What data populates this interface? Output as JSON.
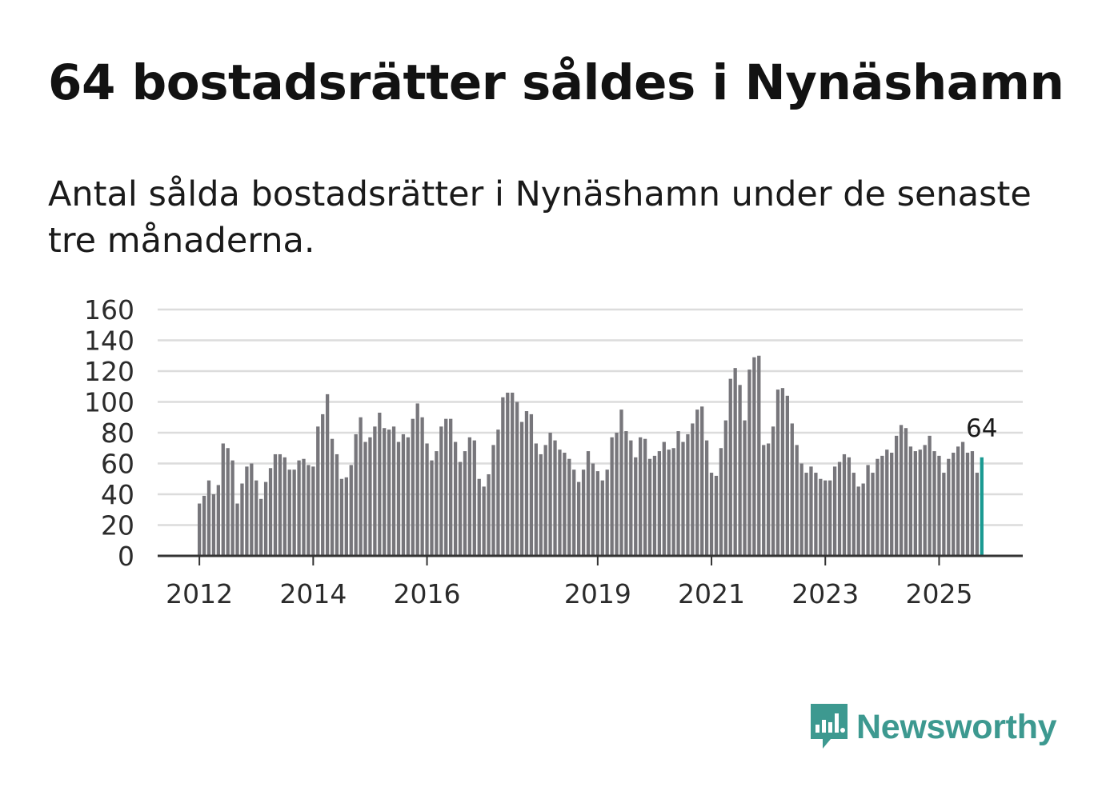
{
  "title": "64 bostadsrätter såldes i Nynäshamn",
  "subtitle": "Antal sålda bostadsrätter i Nynäshamn under de senaste tre månaderna.",
  "brand": {
    "name": "Newsworthy",
    "color": "#3d9990",
    "icon": "newsworthy-logo-icon"
  },
  "colors": {
    "bar": "#77767b",
    "highlight": "#1a9a92",
    "grid": "#dcdcdc",
    "axis": "#333333"
  },
  "chart_data": {
    "type": "bar",
    "title": "Antal sålda bostadsrätter i Nynäshamn under de senaste tre månaderna",
    "xlabel": "",
    "ylabel": "",
    "ylim": [
      0,
      160
    ],
    "yticks": [
      "0",
      "20",
      "40",
      "60",
      "80",
      "100",
      "120",
      "140",
      "160"
    ],
    "xticks": [
      "2012",
      "2014",
      "2016",
      "2019",
      "2021",
      "2023",
      "2025"
    ],
    "grid": true,
    "start": "2012-01",
    "frequency": "monthly",
    "highlight_last": true,
    "last_label": "64",
    "values": [
      34,
      39,
      49,
      40,
      46,
      73,
      70,
      62,
      34,
      47,
      58,
      60,
      49,
      37,
      48,
      57,
      66,
      66,
      64,
      56,
      56,
      62,
      63,
      59,
      58,
      84,
      92,
      105,
      76,
      66,
      50,
      51,
      59,
      79,
      90,
      74,
      77,
      84,
      93,
      83,
      82,
      84,
      74,
      79,
      77,
      89,
      99,
      90,
      73,
      62,
      68,
      84,
      89,
      89,
      74,
      61,
      68,
      77,
      75,
      50,
      45,
      53,
      72,
      82,
      103,
      106,
      106,
      100,
      87,
      94,
      92,
      73,
      66,
      72,
      80,
      75,
      69,
      67,
      63,
      56,
      48,
      56,
      68,
      60,
      55,
      49,
      56,
      77,
      80,
      95,
      81,
      75,
      64,
      77,
      76,
      63,
      65,
      68,
      74,
      69,
      70,
      81,
      74,
      79,
      86,
      95,
      97,
      75,
      54,
      52,
      70,
      88,
      115,
      122,
      111,
      88,
      121,
      129,
      130,
      72,
      73,
      84,
      108,
      109,
      104,
      86,
      72,
      60,
      54,
      58,
      54,
      50,
      49,
      49,
      58,
      61,
      66,
      64,
      54,
      45,
      47,
      59,
      54,
      63,
      65,
      69,
      67,
      78,
      85,
      83,
      71,
      68,
      69,
      72,
      78,
      68,
      65,
      54,
      63,
      67,
      71,
      74,
      67,
      68,
      54,
      64
    ]
  }
}
